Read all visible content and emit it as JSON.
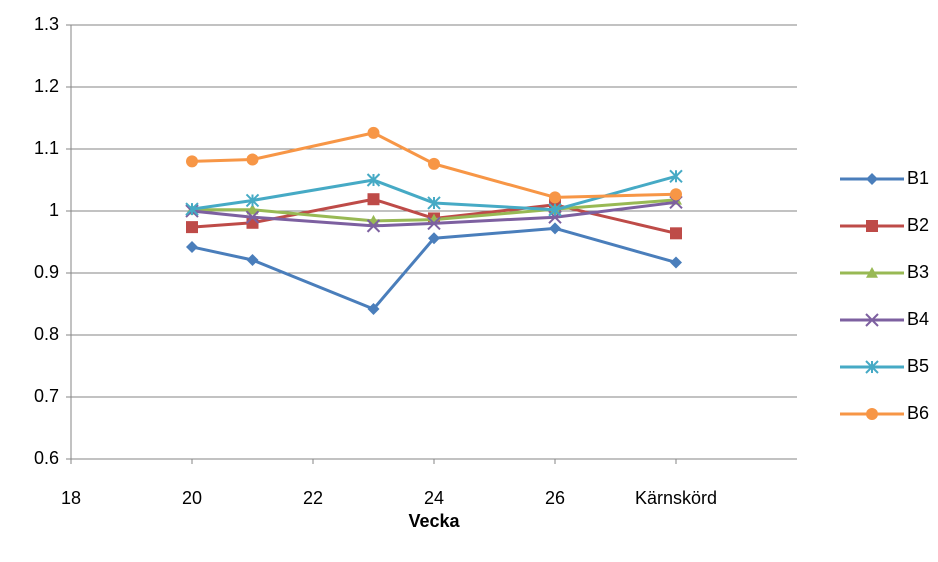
{
  "chart_data": {
    "type": "line",
    "x_label": "Vecka",
    "x": [
      20,
      21,
      23,
      24,
      26,
      28
    ],
    "xlim": [
      18,
      30
    ],
    "xticks": [
      18,
      20,
      22,
      24,
      26,
      {
        "value": 28,
        "label": "Kärnskörd"
      }
    ],
    "ylim": [
      0.6,
      1.3
    ],
    "yticks": [
      0.6,
      0.7,
      0.8,
      0.9,
      1,
      1.1,
      1.2,
      1.3
    ],
    "grid": true,
    "legend": "right",
    "series": [
      {
        "name": "B1",
        "color": "#4a7ebb",
        "marker": "diamond",
        "values": [
          0.942,
          0.921,
          0.842,
          0.956,
          0.972,
          0.917
        ]
      },
      {
        "name": "B2",
        "color": "#be4b48",
        "marker": "square",
        "values": [
          0.974,
          0.981,
          1.019,
          0.988,
          1.01,
          0.964
        ]
      },
      {
        "name": "B3",
        "color": "#98b954",
        "marker": "triangle",
        "values": [
          1.002,
          1.002,
          0.984,
          0.986,
          1.003,
          1.018
        ]
      },
      {
        "name": "B4",
        "color": "#7d60a0",
        "marker": "x",
        "values": [
          1.0,
          0.99,
          0.976,
          0.98,
          0.99,
          1.014
        ]
      },
      {
        "name": "B5",
        "color": "#46aac5",
        "marker": "star",
        "values": [
          1.003,
          1.017,
          1.05,
          1.013,
          1.002,
          1.056
        ]
      },
      {
        "name": "B6",
        "color": "#f79646",
        "marker": "circle",
        "values": [
          1.08,
          1.083,
          1.126,
          1.076,
          1.022,
          1.027
        ]
      }
    ]
  }
}
